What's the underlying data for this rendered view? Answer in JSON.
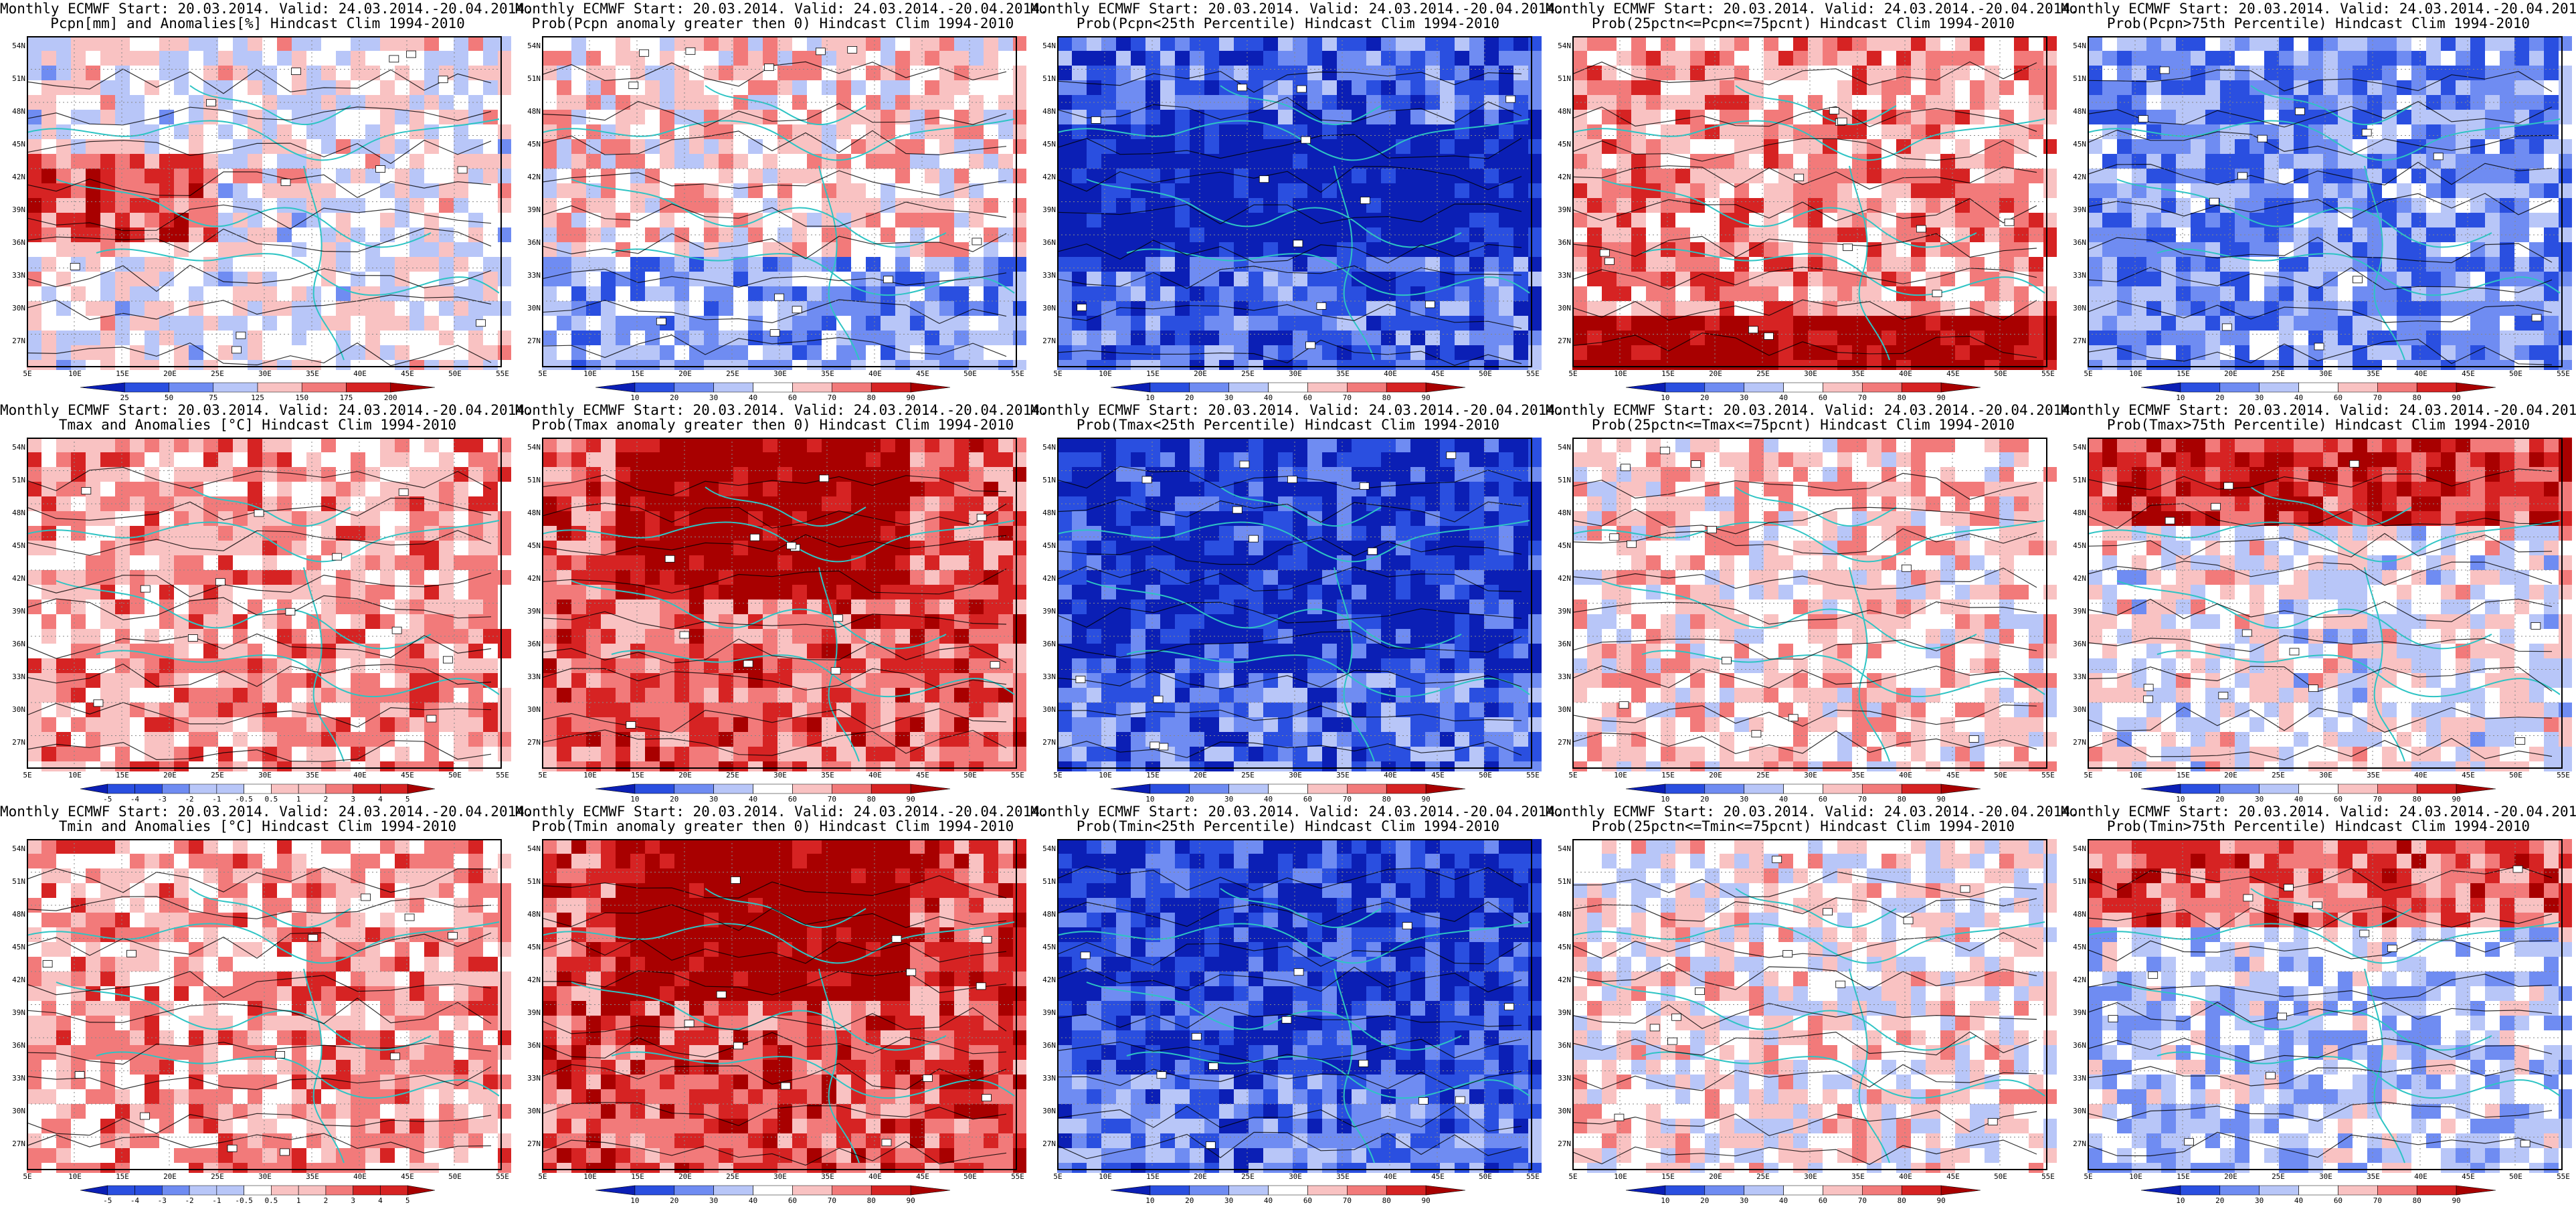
{
  "header_prefix": "Monthly ECMWF Start: 20.03.2014. Valid: 24.03.2014.-20.04.2014.",
  "lat_labels": [
    "54N",
    "51N",
    "48N",
    "45N",
    "42N",
    "39N",
    "36N",
    "33N",
    "30N",
    "27N"
  ],
  "lon_labels": [
    "5E",
    "10E",
    "15E",
    "20E",
    "25E",
    "30E",
    "35E",
    "40E",
    "45E",
    "50E",
    "55E"
  ],
  "colors": {
    "coastline": "#2ec4c4",
    "contour": "#000000",
    "deep_blue": "#0b1fb5",
    "deep_red": "#a80000"
  },
  "rows": [
    {
      "name": "precipitation",
      "panels": [
        {
          "title": "Pcpn[mm] and Anomalies[%] Hindcast Clim 1994-2010",
          "colorbar": [
            "25",
            "50",
            "75",
            "125",
            "150",
            "175",
            "200"
          ]
        },
        {
          "title": "Prob(Pcpn anomaly greater then 0) Hindcast Clim 1994-2010",
          "colorbar": [
            "10",
            "20",
            "30",
            "40",
            "60",
            "70",
            "80",
            "90"
          ]
        },
        {
          "title": "Prob(Pcpn<25th Percentile) Hindcast Clim 1994-2010",
          "colorbar": [
            "10",
            "20",
            "30",
            "40",
            "60",
            "70",
            "80",
            "90"
          ]
        },
        {
          "title": "Prob(25pctn<=Pcpn<=75pcnt) Hindcast Clim 1994-2010",
          "colorbar": [
            "10",
            "20",
            "30",
            "40",
            "60",
            "70",
            "80",
            "90"
          ]
        },
        {
          "title": "Prob(Pcpn>75th Percentile) Hindcast Clim 1994-2010",
          "colorbar": [
            "10",
            "20",
            "30",
            "40",
            "60",
            "70",
            "80",
            "90"
          ]
        }
      ]
    },
    {
      "name": "tmax",
      "panels": [
        {
          "title": "Tmax and Anomalies [°C] Hindcast Clim 1994-2010",
          "colorbar": [
            "-5",
            "-4",
            "-3",
            "-2",
            "-1",
            "-0.5",
            "0.5",
            "1",
            "2",
            "3",
            "4",
            "5"
          ]
        },
        {
          "title": "Prob(Tmax anomaly greater then 0) Hindcast Clim 1994-2010",
          "colorbar": [
            "10",
            "20",
            "30",
            "40",
            "60",
            "70",
            "80",
            "90"
          ]
        },
        {
          "title": "Prob(Tmax<25th Percentile) Hindcast Clim 1994-2010",
          "colorbar": [
            "10",
            "20",
            "30",
            "40",
            "60",
            "70",
            "80",
            "90"
          ]
        },
        {
          "title": "Prob(25pctn<=Tmax<=75pcnt) Hindcast Clim 1994-2010",
          "colorbar": [
            "10",
            "20",
            "30",
            "40",
            "60",
            "70",
            "80",
            "90"
          ]
        },
        {
          "title": "Prob(Tmax>75th Percentile) Hindcast Clim 1994-2010",
          "colorbar": [
            "10",
            "20",
            "30",
            "40",
            "60",
            "70",
            "80",
            "90"
          ]
        }
      ]
    },
    {
      "name": "tmin",
      "panels": [
        {
          "title": "Tmin and Anomalies [°C] Hindcast Clim 1994-2010",
          "colorbar": [
            "-5",
            "-4",
            "-3",
            "-2",
            "-1",
            "-0.5",
            "0.5",
            "1",
            "2",
            "3",
            "4",
            "5"
          ]
        },
        {
          "title": "Prob(Tmin anomaly greater then 0) Hindcast Clim 1994-2010",
          "colorbar": [
            "10",
            "20",
            "30",
            "40",
            "60",
            "70",
            "80",
            "90"
          ]
        },
        {
          "title": "Prob(Tmin<25th Percentile) Hindcast Clim 1994-2010",
          "colorbar": [
            "10",
            "20",
            "30",
            "40",
            "60",
            "70",
            "80",
            "90"
          ]
        },
        {
          "title": "Prob(25pctn<=Tmin<=75pcnt) Hindcast Clim 1994-2010",
          "colorbar": [
            "10",
            "20",
            "30",
            "40",
            "60",
            "70",
            "80",
            "90"
          ]
        },
        {
          "title": "Prob(Tmin>75th Percentile) Hindcast Clim 1994-2010",
          "colorbar": [
            "10",
            "20",
            "30",
            "40",
            "60",
            "70",
            "80",
            "90"
          ]
        }
      ]
    }
  ]
}
